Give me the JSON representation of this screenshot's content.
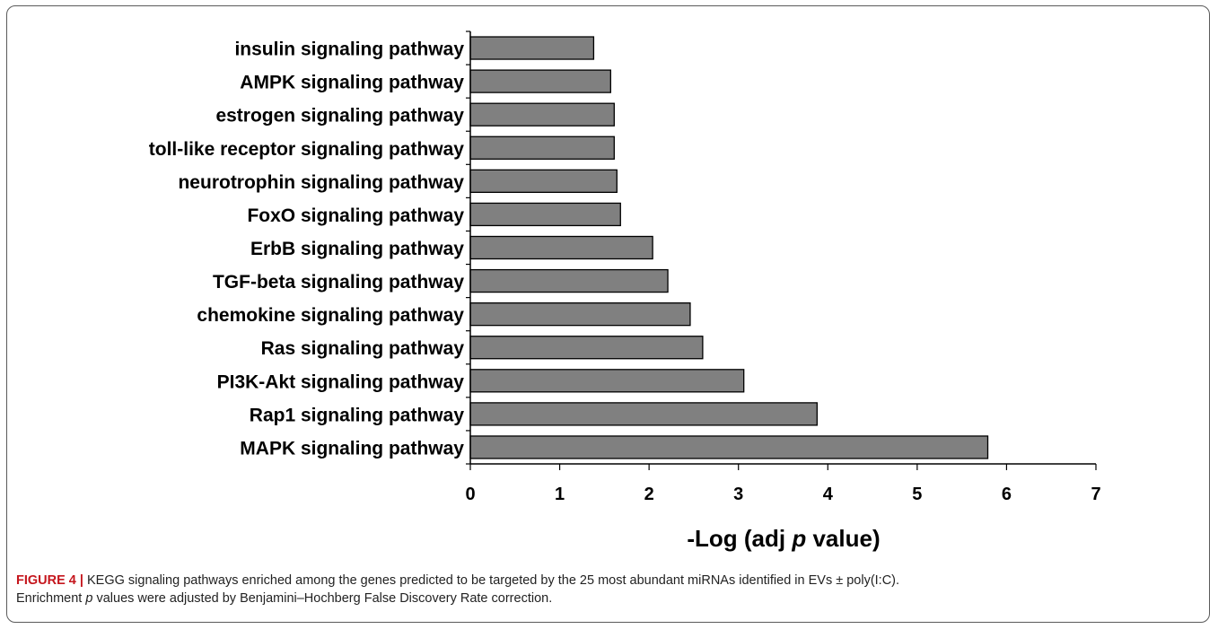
{
  "chart_data": {
    "type": "bar",
    "orientation": "horizontal",
    "categories": [
      "insulin signaling pathway",
      "AMPK signaling pathway",
      "estrogen signaling pathway",
      "toll-like receptor signaling pathway",
      "neurotrophin signaling pathway",
      "FoxO signaling pathway",
      "ErbB signaling pathway",
      "TGF-beta signaling pathway",
      "chemokine signaling pathway",
      "Ras signaling pathway",
      "PI3K-Akt signaling pathway",
      "Rap1 signaling pathway",
      "MAPK signaling pathway"
    ],
    "values": [
      1.38,
      1.57,
      1.61,
      1.61,
      1.64,
      1.68,
      2.04,
      2.21,
      2.46,
      2.6,
      3.06,
      3.88,
      5.79
    ],
    "xlim": [
      0,
      7
    ],
    "xticks": [
      "0",
      "1",
      "2",
      "3",
      "4",
      "5",
      "6",
      "7"
    ],
    "xlabel_prefix": "-Log (adj ",
    "xlabel_italic": "p",
    "xlabel_suffix": " value)",
    "bar_color": "#808080",
    "grid": false
  },
  "caption": {
    "label": "FIGURE 4 |",
    "line1": " KEGG signaling pathways enriched among the genes predicted to be targeted by the 25 most abundant miRNAs identified in EVs ± poly(I:C).",
    "line2_prefix": "Enrichment ",
    "line2_italic": "p",
    "line2_suffix": " values were adjusted by Benjamini–Hochberg False Discovery Rate correction."
  }
}
